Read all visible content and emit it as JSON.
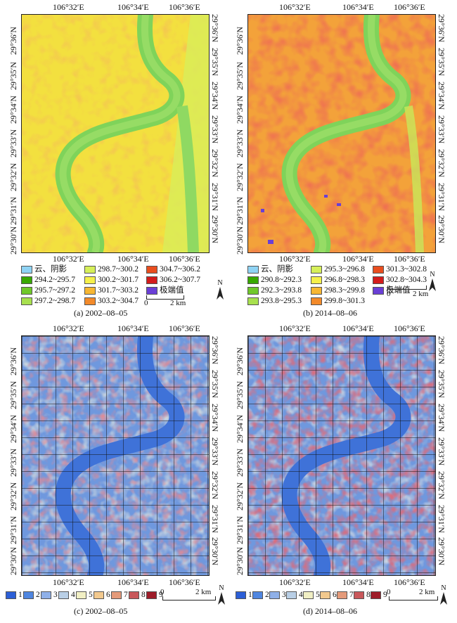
{
  "panels": [
    {
      "id": "a",
      "caption": "(a) 2002–08–05",
      "lon_ticks": [
        "106°32′E",
        "106°34′E",
        "106°36′E"
      ],
      "lat_ticks": [
        "29°36′N",
        "29°35′N",
        "29°34′N",
        "29°33′N",
        "29°32′N",
        "29°31′N",
        "29°30′N"
      ],
      "legend": [
        {
          "label": "云、阴影",
          "color": "#8fd3f4"
        },
        {
          "label": "294.2~295.7",
          "color": "#38a800"
        },
        {
          "label": "295.7~297.2",
          "color": "#70c82a"
        },
        {
          "label": "297.2~298.7",
          "color": "#a8e04e"
        },
        {
          "label": "298.7~300.2",
          "color": "#d6ef5a"
        },
        {
          "label": "300.2~301.7",
          "color": "#f5f04b"
        },
        {
          "label": "301.7~303.2",
          "color": "#f7b733"
        },
        {
          "label": "303.2~304.7",
          "color": "#f38a2a"
        },
        {
          "label": "304.7~306.2",
          "color": "#e94e1f"
        },
        {
          "label": "306.2~307.7",
          "color": "#d41c1c"
        },
        {
          "label": "极端值",
          "color": "#6a3fd6"
        }
      ],
      "scale": {
        "zero": "0",
        "end": "2 km"
      },
      "north": "N"
    },
    {
      "id": "b",
      "caption": "(b) 2014–08–06",
      "lon_ticks": [
        "106°32′E",
        "106°34′E",
        "106°36′E"
      ],
      "lat_ticks": [
        "29°36′N",
        "29°35′N",
        "29°34′N",
        "29°33′N",
        "29°32′N",
        "29°31′N",
        "29°30′N"
      ],
      "legend": [
        {
          "label": "云、阴影",
          "color": "#8fd3f4"
        },
        {
          "label": "290.8~292.3",
          "color": "#38a800"
        },
        {
          "label": "292.3~293.8",
          "color": "#70c82a"
        },
        {
          "label": "293.8~295.3",
          "color": "#a8e04e"
        },
        {
          "label": "295.3~296.8",
          "color": "#d6ef5a"
        },
        {
          "label": "296.8~298.3",
          "color": "#f5f04b"
        },
        {
          "label": "298.3~299.8",
          "color": "#f7b733"
        },
        {
          "label": "299.8~301.3",
          "color": "#f38a2a"
        },
        {
          "label": "301.3~302.8",
          "color": "#e94e1f"
        },
        {
          "label": "302.8~304.3",
          "color": "#d41c1c"
        },
        {
          "label": "极端值",
          "color": "#6a3fd6"
        }
      ],
      "scale": {
        "zero": "0",
        "end": "2 km"
      },
      "north": "N"
    },
    {
      "id": "c",
      "caption": "(c) 2002–08–05",
      "lon_ticks": [
        "106°32′E",
        "106°34′E",
        "106°36′E"
      ],
      "lat_ticks": [
        "29°36′N",
        "29°35′N",
        "29°34′N",
        "29°33′N",
        "29°32′N",
        "29°31′N",
        "29°30′N"
      ],
      "classes": [
        {
          "label": "1",
          "color": "#2c5fd6"
        },
        {
          "label": "2",
          "color": "#4f86e0"
        },
        {
          "label": "3",
          "color": "#8fb0e8"
        },
        {
          "label": "4",
          "color": "#b9cfe6"
        },
        {
          "label": "5",
          "color": "#f1efc4"
        },
        {
          "label": "6",
          "color": "#f2c98e"
        },
        {
          "label": "7",
          "color": "#e49a7a"
        },
        {
          "label": "8",
          "color": "#c8575a"
        },
        {
          "label": "9",
          "color": "#9e1d2a"
        }
      ],
      "scale": {
        "zero": "0",
        "end": "2 km"
      },
      "north": "N"
    },
    {
      "id": "d",
      "caption": "(d) 2014–08–06",
      "lon_ticks": [
        "106°32′E",
        "106°34′E",
        "106°36′E"
      ],
      "lat_ticks": [
        "29°36′N",
        "29°35′N",
        "29°34′N",
        "29°33′N",
        "29°32′N",
        "29°31′N",
        "29°30′N"
      ],
      "classes": [
        {
          "label": "1",
          "color": "#2c5fd6"
        },
        {
          "label": "2",
          "color": "#4f86e0"
        },
        {
          "label": "3",
          "color": "#8fb0e8"
        },
        {
          "label": "4",
          "color": "#b9cfe6"
        },
        {
          "label": "5",
          "color": "#f1efc4"
        },
        {
          "label": "6",
          "color": "#f2c98e"
        },
        {
          "label": "7",
          "color": "#e49a7a"
        },
        {
          "label": "8",
          "color": "#c8575a"
        },
        {
          "label": "9",
          "color": "#9e1d2a"
        }
      ],
      "scale": {
        "zero": "0",
        "end": "2 km"
      },
      "north": "N"
    }
  ]
}
